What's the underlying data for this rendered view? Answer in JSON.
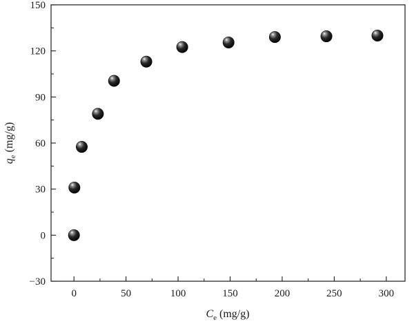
{
  "chart_data": {
    "type": "scatter",
    "title": "",
    "xlabel": {
      "symbol": "C",
      "subscript": "e",
      "unit": " (mg/g)"
    },
    "ylabel": {
      "symbol": "q",
      "subscript": "e",
      "unit": " (mg/g)"
    },
    "xlim": [
      -22,
      318
    ],
    "ylim": [
      -30,
      150
    ],
    "xticks": [
      0,
      50,
      100,
      150,
      200,
      250,
      300
    ],
    "yticks": [
      -30,
      0,
      30,
      60,
      90,
      120,
      150
    ],
    "x_tick_labels": [
      "0",
      "50",
      "100",
      "150",
      "200",
      "250",
      "300"
    ],
    "y_tick_labels": [
      "−30",
      "0",
      "30",
      "60",
      "90",
      "120",
      "150"
    ],
    "grid": false,
    "legend": "none",
    "marker": "sphere",
    "marker_color": "#111111",
    "series": [
      {
        "points": [
          {
            "x": 0.0,
            "y": 0.0
          },
          {
            "x": 0.4,
            "y": 31.0
          },
          {
            "x": 7.5,
            "y": 57.5
          },
          {
            "x": 23.0,
            "y": 79.0
          },
          {
            "x": 38.5,
            "y": 100.5
          },
          {
            "x": 69.5,
            "y": 113.0
          },
          {
            "x": 104.0,
            "y": 122.5
          },
          {
            "x": 148.5,
            "y": 125.5
          },
          {
            "x": 193.0,
            "y": 129.0
          },
          {
            "x": 242.5,
            "y": 129.5
          },
          {
            "x": 291.5,
            "y": 130.0
          }
        ]
      }
    ]
  }
}
